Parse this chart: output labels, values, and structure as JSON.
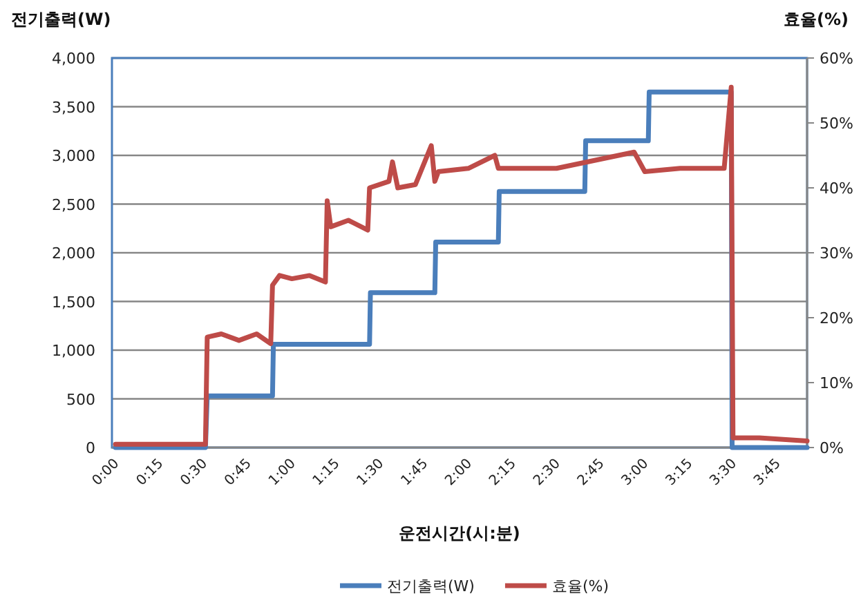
{
  "chart_data": {
    "type": "line",
    "xlabel": "운전시간(시:분)",
    "ylabel": "전기출력(W)",
    "y2label": "효율(%)",
    "xlim": [
      -0.02,
      3.92
    ],
    "xticks": [
      {
        "value": 0,
        "label": "0:00"
      },
      {
        "value": 0.25,
        "label": "0:15"
      },
      {
        "value": 0.5,
        "label": "0:30"
      },
      {
        "value": 0.75,
        "label": "0:45"
      },
      {
        "value": 1,
        "label": "1:00"
      },
      {
        "value": 1.25,
        "label": "1:15"
      },
      {
        "value": 1.5,
        "label": "1:30"
      },
      {
        "value": 1.75,
        "label": "1:45"
      },
      {
        "value": 2,
        "label": "2:00"
      },
      {
        "value": 2.25,
        "label": "2:15"
      },
      {
        "value": 2.5,
        "label": "2:30"
      },
      {
        "value": 2.75,
        "label": "2:45"
      },
      {
        "value": 3,
        "label": "3:00"
      },
      {
        "value": 3.25,
        "label": "3:15"
      },
      {
        "value": 3.5,
        "label": "3:30"
      },
      {
        "value": 3.75,
        "label": "3:45"
      }
    ],
    "ylim": [
      0,
      4000
    ],
    "yticks": [
      0,
      500,
      {
        "value": 1000,
        "label": "1,000"
      },
      {
        "value": 1500,
        "label": "1,500"
      },
      {
        "value": 2000,
        "label": "2,000"
      },
      {
        "value": 2500,
        "label": "2,500"
      },
      {
        "value": 3000,
        "label": "3,000"
      },
      {
        "value": 3500,
        "label": "3,500"
      },
      {
        "value": 4000,
        "label": "4,000"
      }
    ],
    "y2lim": [
      0,
      60
    ],
    "y2ticks": [
      {
        "value": 0,
        "label": "0%"
      },
      {
        "value": 10,
        "label": "10%"
      },
      {
        "value": 20,
        "label": "20%"
      },
      {
        "value": 30,
        "label": "30%"
      },
      {
        "value": 40,
        "label": "40%"
      },
      {
        "value": 50,
        "label": "50%"
      },
      {
        "value": 60,
        "label": "60%"
      }
    ],
    "grid": "y",
    "legend": "bottom",
    "marker": "none",
    "series": [
      {
        "name": "전기출력(W)",
        "color": "#4a7ebb",
        "x": [
          0,
          0.51,
          0.52,
          0.89,
          0.895,
          1.44,
          1.445,
          1.81,
          1.815,
          2.17,
          2.175,
          2.66,
          2.665,
          3.02,
          3.025,
          3.49,
          3.495,
          3.92
        ],
        "values": [
          0,
          0,
          530,
          530,
          1060,
          1060,
          1590,
          1590,
          2110,
          2110,
          2630,
          2630,
          3150,
          3150,
          3650,
          3650,
          0,
          0
        ]
      },
      {
        "name": "효율(%)",
        "color": "#be4b48",
        "axis": "y2",
        "x": [
          0,
          0.51,
          0.52,
          0.6,
          0.7,
          0.8,
          0.88,
          0.89,
          0.93,
          1.0,
          1.1,
          1.19,
          1.2,
          1.22,
          1.32,
          1.43,
          1.44,
          1.55,
          1.57,
          1.6,
          1.7,
          1.79,
          1.81,
          1.83,
          2.0,
          2.15,
          2.17,
          2.5,
          2.94,
          3.0,
          3.2,
          3.45,
          3.49,
          3.5,
          3.65,
          3.92
        ],
        "values": [
          0.5,
          0.5,
          17,
          17.5,
          16.5,
          17.5,
          16,
          25,
          26.5,
          26,
          26.5,
          25.5,
          38,
          34,
          35,
          33.5,
          40,
          41,
          44,
          40,
          40.5,
          46.5,
          41,
          42.5,
          43,
          45,
          43,
          43,
          45.5,
          42.5,
          43,
          43,
          55.5,
          1.5,
          1.5,
          1
        ]
      }
    ]
  }
}
